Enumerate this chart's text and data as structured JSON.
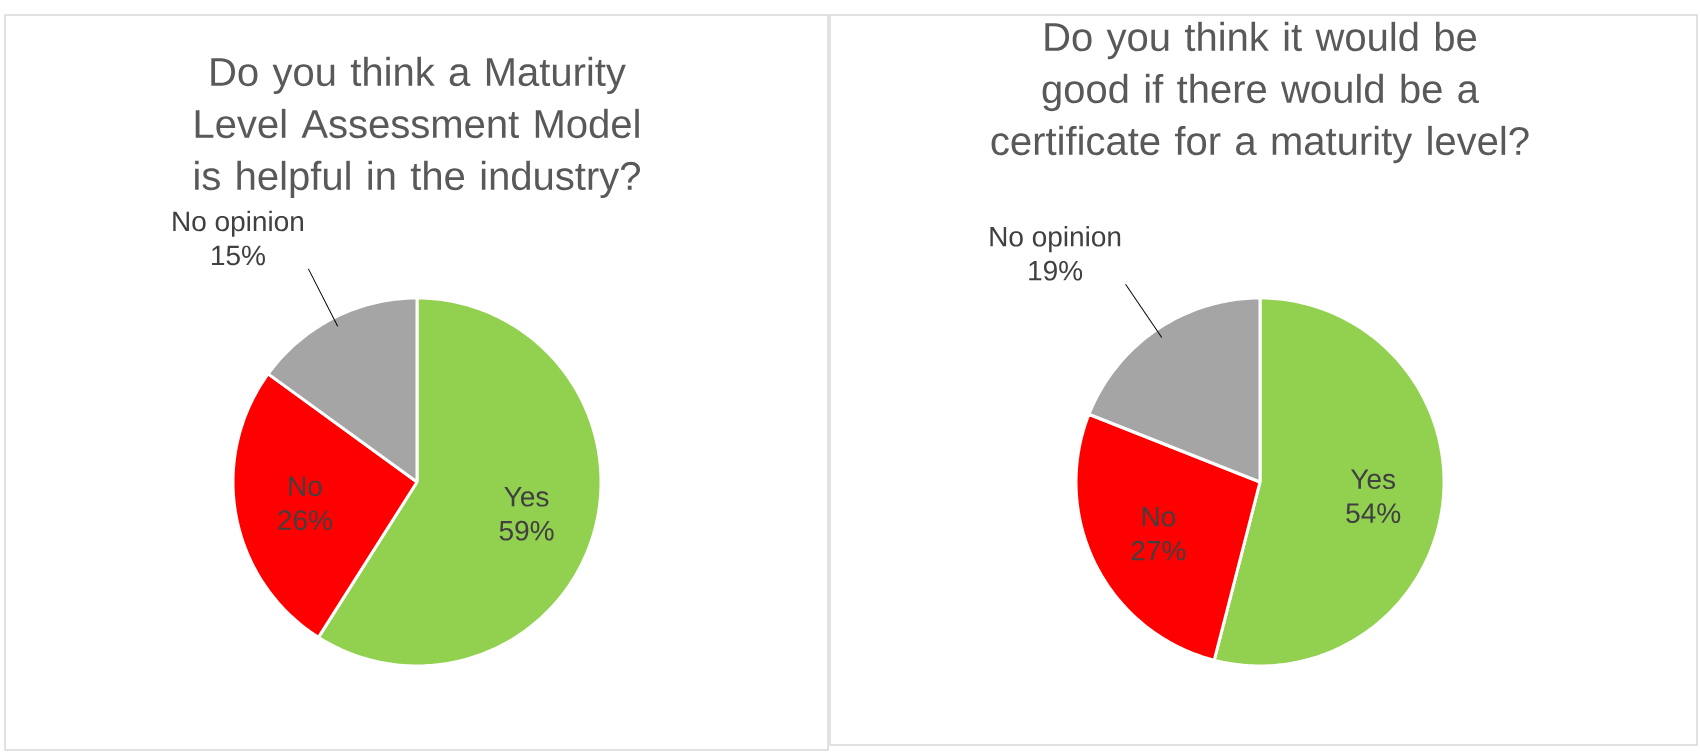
{
  "chart_data": [
    {
      "type": "pie",
      "title": "Do you think a Maturity Level Assessment Model is helpful in the industry?",
      "categories": [
        "Yes",
        "No",
        "No opinion"
      ],
      "values": [
        59,
        26,
        15
      ],
      "colors": [
        "#92d050",
        "#ff0000",
        "#a5a5a5"
      ],
      "value_labels": [
        "59%",
        "26%",
        "15%"
      ]
    },
    {
      "type": "pie",
      "title": "Do you think it would be good if there would be a certificate for a maturity level?",
      "categories": [
        "Yes",
        "No",
        "No opinion"
      ],
      "values": [
        54,
        27,
        19
      ],
      "colors": [
        "#92d050",
        "#ff0000",
        "#a5a5a5"
      ],
      "value_labels": [
        "54%",
        "27%",
        "19%"
      ]
    }
  ]
}
